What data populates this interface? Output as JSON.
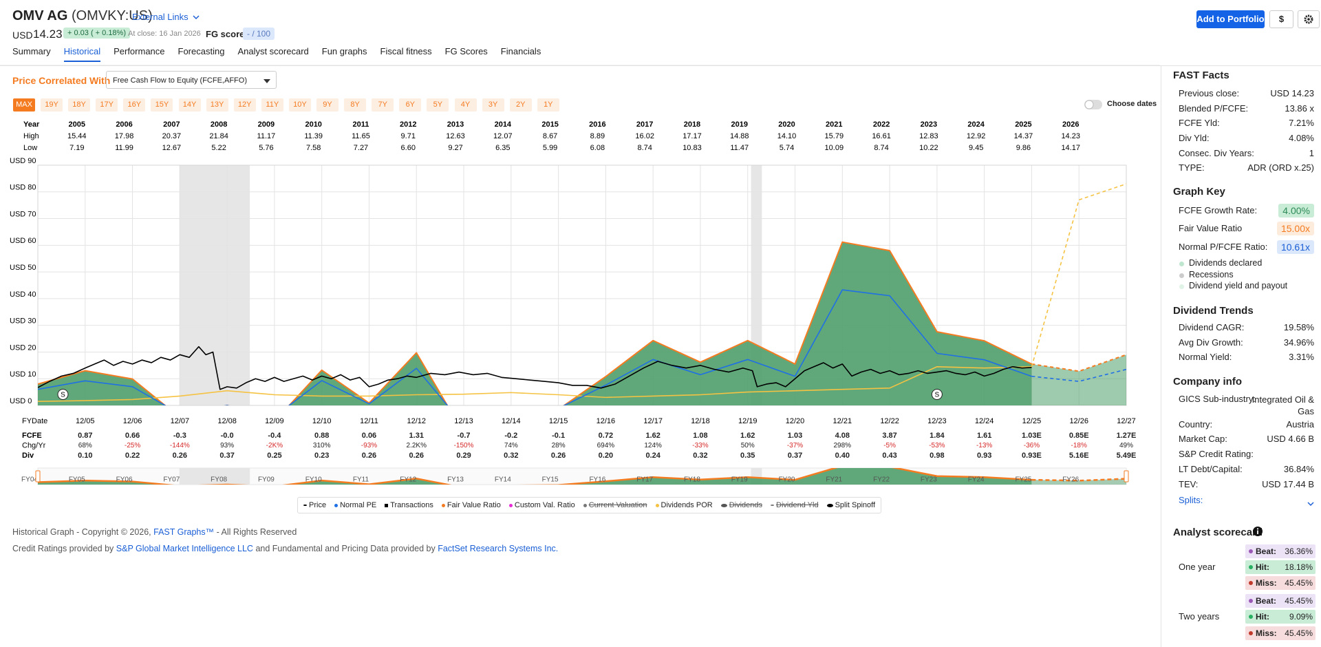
{
  "header": {
    "company": "OMV AG",
    "ticker": "(OMVKY:US)",
    "external_links": "External Links",
    "currency": "USD",
    "price": "14.23",
    "change": "+ 0.03 ( + 0.18%)",
    "at_close": "At close: 16 Jan 2026",
    "fg_score_label": "FG score",
    "fg_score": "- / 100",
    "add_to_portfolio": "Add to Portfolio",
    "currency_button": "$"
  },
  "tabs": [
    "Summary",
    "Historical",
    "Performance",
    "Forecasting",
    "Analyst scorecard",
    "Fun graphs",
    "Fiscal fitness",
    "FG Scores",
    "Financials"
  ],
  "active_tab": 1,
  "controls": {
    "price_correlated_label": "Price Correlated With",
    "correlated_with": "Free Cash Flow to Equity (FCFE,AFFO)",
    "ranges": [
      "MAX",
      "19Y",
      "18Y",
      "17Y",
      "16Y",
      "15Y",
      "14Y",
      "13Y",
      "12Y",
      "11Y",
      "10Y",
      "9Y",
      "8Y",
      "7Y",
      "6Y",
      "5Y",
      "4Y",
      "3Y",
      "2Y",
      "1Y"
    ],
    "active_range": 0,
    "choose_dates": "Choose dates"
  },
  "year_table": {
    "row_labels": [
      "Year",
      "High",
      "Low"
    ],
    "years": [
      "2005",
      "2006",
      "2007",
      "2008",
      "2009",
      "2010",
      "2011",
      "2012",
      "2013",
      "2014",
      "2015",
      "2016",
      "2017",
      "2018",
      "2019",
      "2020",
      "2021",
      "2022",
      "2023",
      "2024",
      "2025",
      "2026"
    ],
    "high": [
      "15.44",
      "17.98",
      "20.37",
      "21.84",
      "11.17",
      "11.39",
      "11.65",
      "9.71",
      "12.63",
      "12.07",
      "8.67",
      "8.89",
      "16.02",
      "17.17",
      "14.88",
      "14.10",
      "15.79",
      "16.61",
      "12.83",
      "12.92",
      "14.37",
      "14.23"
    ],
    "low": [
      "7.19",
      "11.99",
      "12.67",
      "5.22",
      "5.76",
      "7.58",
      "7.27",
      "6.60",
      "9.27",
      "6.35",
      "5.99",
      "6.08",
      "8.74",
      "10.83",
      "11.47",
      "5.74",
      "10.09",
      "8.74",
      "10.22",
      "9.45",
      "9.86",
      "14.17"
    ]
  },
  "chart_data": {
    "type": "line",
    "xlim": [
      2004,
      2027
    ],
    "ylim": [
      0,
      90
    ],
    "xticks": [
      {
        "value": 2005,
        "label": "12/05"
      },
      {
        "value": 2006,
        "label": "12/06"
      },
      {
        "value": 2007,
        "label": "12/07"
      },
      {
        "value": 2008,
        "label": "12/08"
      },
      {
        "value": 2009,
        "label": "12/09"
      },
      {
        "value": 2010,
        "label": "12/10"
      },
      {
        "value": 2011,
        "label": "12/11"
      },
      {
        "value": 2012,
        "label": "12/12"
      },
      {
        "value": 2013,
        "label": "12/13"
      },
      {
        "value": 2014,
        "label": "12/14"
      },
      {
        "value": 2015,
        "label": "12/15"
      },
      {
        "value": 2016,
        "label": "12/16"
      },
      {
        "value": 2017,
        "label": "12/17"
      },
      {
        "value": 2018,
        "label": "12/18"
      },
      {
        "value": 2019,
        "label": "12/19"
      },
      {
        "value": 2020,
        "label": "12/20"
      },
      {
        "value": 2021,
        "label": "12/21"
      },
      {
        "value": 2022,
        "label": "12/22"
      },
      {
        "value": 2023,
        "label": "12/23"
      },
      {
        "value": 2024,
        "label": "12/24"
      },
      {
        "value": 2025,
        "label": "12/25"
      },
      {
        "value": 2026,
        "label": "12/26"
      },
      {
        "value": 2027,
        "label": "12/27"
      }
    ],
    "yticks": [
      {
        "value": 0,
        "label": "USD 0"
      },
      {
        "value": 10,
        "label": "USD 10"
      },
      {
        "value": 20,
        "label": "USD 20"
      },
      {
        "value": 30,
        "label": "USD 30"
      },
      {
        "value": 40,
        "label": "USD 40"
      },
      {
        "value": 50,
        "label": "USD 50"
      },
      {
        "value": 60,
        "label": "USD 60"
      },
      {
        "value": 70,
        "label": "USD 70"
      },
      {
        "value": 80,
        "label": "USD 80"
      },
      {
        "value": 90,
        "label": "USD 90"
      }
    ],
    "grid": true,
    "forecast_start": 2025,
    "recessions": [
      {
        "start": 2006.99,
        "end": 2008.48
      },
      {
        "start": 2019.07,
        "end": 2019.3
      }
    ],
    "splits": [
      {
        "x": 2004.53,
        "label": "S"
      },
      {
        "x": 2023.0,
        "label": "S"
      }
    ],
    "series": [
      {
        "name": "Fair Value Ratio",
        "color": "#f47b20",
        "fill": "#4f9e6b",
        "x": [
          2004,
          2005,
          2006,
          2007,
          2008,
          2009,
          2010,
          2011,
          2012,
          2013,
          2014,
          2015,
          2016,
          2017,
          2018,
          2019,
          2020,
          2021,
          2022,
          2023,
          2024,
          2025,
          2026,
          2027
        ],
        "values": [
          8,
          13,
          9.9,
          -4.5,
          0,
          -6,
          13.2,
          0.9,
          19.7,
          -10.5,
          -3,
          -1.5,
          10.8,
          24.3,
          16.2,
          24.3,
          15.5,
          61.2,
          58,
          27.6,
          24.2,
          15.5,
          12.8,
          19
        ]
      },
      {
        "name": "Dividends POR",
        "color": "#f5c242",
        "x": [
          2004,
          2005,
          2006,
          2007,
          2008,
          2009,
          2010,
          2011,
          2012,
          2013,
          2014,
          2015,
          2016,
          2017,
          2018,
          2019,
          2020,
          2021,
          2022,
          2023,
          2024,
          2025,
          2026,
          2027
        ],
        "values": [
          1.5,
          1.8,
          2.2,
          3.5,
          5.5,
          4,
          3.5,
          3.5,
          4,
          4.2,
          4.8,
          4,
          3,
          3.5,
          4,
          5,
          5.5,
          6,
          6.5,
          14.5,
          14,
          14.5,
          77,
          83
        ]
      },
      {
        "name": "Normal PE",
        "color": "#1f6fe5",
        "x": [
          2004,
          2005,
          2006,
          2007,
          2008,
          2009,
          2010,
          2011,
          2012,
          2013,
          2014,
          2015,
          2016,
          2017,
          2018,
          2019,
          2020,
          2021,
          2022,
          2023,
          2024,
          2025,
          2026,
          2027
        ],
        "values": [
          6,
          9.2,
          7,
          -3.2,
          0,
          -4.2,
          9.3,
          0.6,
          13.9,
          -7.4,
          -2.1,
          -1.1,
          7.6,
          17.2,
          11.5,
          17.2,
          10.9,
          43.3,
          41.1,
          19.5,
          17.1,
          10.9,
          9,
          13.5
        ]
      },
      {
        "name": "Price",
        "color": "#000000",
        "x": [
          2004,
          2004.25,
          2004.5,
          2004.75,
          2005,
          2005.2,
          2005.4,
          2005.6,
          2005.8,
          2006,
          2006.2,
          2006.4,
          2006.6,
          2006.8,
          2007,
          2007.2,
          2007.4,
          2007.55,
          2007.7,
          2007.85,
          2008,
          2008.2,
          2008.4,
          2008.6,
          2008.8,
          2009,
          2009.2,
          2009.4,
          2009.6,
          2009.8,
          2010,
          2010.2,
          2010.4,
          2010.6,
          2010.8,
          2011,
          2011.2,
          2011.4,
          2011.6,
          2011.8,
          2012,
          2012.3,
          2012.6,
          2012.9,
          2013.2,
          2013.5,
          2013.8,
          2014.1,
          2014.4,
          2014.7,
          2015,
          2015.3,
          2015.6,
          2015.9,
          2016.2,
          2016.5,
          2016.8,
          2017.1,
          2017.4,
          2017.7,
          2018,
          2018.3,
          2018.6,
          2018.9,
          2019.1,
          2019.2,
          2019.4,
          2019.6,
          2019.8,
          2020,
          2020.2,
          2020.4,
          2020.6,
          2020.8,
          2021,
          2021.2,
          2021.4,
          2021.6,
          2021.8,
          2022,
          2022.2,
          2022.4,
          2022.6,
          2022.8,
          2023,
          2023.2,
          2023.4,
          2023.6,
          2023.8,
          2024,
          2024.2,
          2024.4,
          2024.6,
          2024.8,
          2025
        ],
        "values": [
          6.7,
          9,
          11,
          12,
          14,
          15.5,
          17,
          15,
          16.5,
          15.5,
          17,
          16,
          18,
          17,
          19,
          18,
          22,
          19,
          20,
          6,
          7,
          6.5,
          8.5,
          10,
          9,
          10.5,
          9,
          10,
          11,
          9.5,
          11,
          10,
          11.5,
          9.5,
          10.5,
          7,
          8,
          9.5,
          10,
          11,
          10.5,
          12,
          11.5,
          12.5,
          11.5,
          12,
          10.5,
          10,
          9.5,
          9,
          8.5,
          7.5,
          7.5,
          6.5,
          8,
          11,
          14,
          16.5,
          15,
          14,
          15,
          13.5,
          12.5,
          14,
          13,
          7,
          8,
          8.5,
          7,
          10,
          13,
          14.5,
          16,
          14,
          15.5,
          11,
          12.5,
          13.5,
          12,
          13,
          11.5,
          12,
          13,
          12,
          12.5,
          13,
          12,
          11.5,
          12.5,
          11,
          12,
          13.5,
          14.5,
          14,
          14.23
        ]
      }
    ],
    "legend": [
      {
        "name": "Price",
        "color": "#000000"
      },
      {
        "name": "Normal PE",
        "color": "#1f6fe5"
      },
      {
        "name": "Transactions",
        "color": "#000000"
      },
      {
        "name": "Fair Value Ratio",
        "color": "#f47b20"
      },
      {
        "name": "Custom Val. Ratio",
        "color": "#e52ad6"
      },
      {
        "name": "Current Valuation",
        "color": "#777777",
        "hidden": true
      },
      {
        "name": "Dividends POR",
        "color": "#f5c242"
      },
      {
        "name": "Dividends",
        "color": "#555555",
        "hidden": true
      },
      {
        "name": "Dividend Yld",
        "color": "#777777",
        "hidden": true
      },
      {
        "name": "Split Spinoff",
        "color": "#000000"
      }
    ]
  },
  "fundamentals": {
    "date_label": "FYDate",
    "row_labels": [
      "FCFE",
      "Chg/Yr",
      "Div"
    ],
    "rows": [
      [
        "0.87",
        "0.66",
        "-0.3",
        "-0.0",
        "-0.4",
        "0.88",
        "0.06",
        "1.31",
        "-0.7",
        "-0.2",
        "-0.1",
        "0.72",
        "1.62",
        "1.08",
        "1.62",
        "1.03",
        "4.08",
        "3.87",
        "1.84",
        "1.61",
        "1.03E",
        "0.85E",
        "1.27E"
      ],
      [
        "68%",
        "-25%",
        "-144%",
        "93%",
        "-2K%",
        "310%",
        "-93%",
        "2.2K%",
        "-150%",
        "74%",
        "28%",
        "694%",
        "124%",
        "-33%",
        "50%",
        "-37%",
        "298%",
        "-5%",
        "-53%",
        "-13%",
        "-36%",
        "-18%",
        "49%"
      ],
      [
        "0.10",
        "0.22",
        "0.26",
        "0.37",
        "0.25",
        "0.23",
        "0.26",
        "0.26",
        "0.29",
        "0.32",
        "0.26",
        "0.20",
        "0.24",
        "0.32",
        "0.35",
        "0.37",
        "0.40",
        "0.43",
        "0.98",
        "0.93",
        "0.93E",
        "5.16E",
        "5.49E"
      ]
    ]
  },
  "navigator": {
    "labels": [
      "FY04",
      "FY05",
      "FY06",
      "FY07",
      "FY08",
      "FY09",
      "FY10",
      "FY11",
      "FY12",
      "FY13",
      "FY14",
      "FY15",
      "FY16",
      "FY17",
      "FY18",
      "FY19",
      "FY20",
      "FY21",
      "FY22",
      "FY23",
      "FY24",
      "FY25",
      "FY26"
    ]
  },
  "footer": {
    "line1": [
      "Historical Graph - Copyright © 2026, ",
      "FAST Graphs™",
      " - All Rights Reserved"
    ],
    "line2": [
      "Credit Ratings provided by ",
      "S&P Global Market Intelligence LLC",
      " and Fundamental and Pricing Data provided by ",
      "FactSet Research Systems Inc."
    ]
  },
  "sidebar": {
    "fast_facts": {
      "title": "FAST Facts",
      "rows": [
        [
          "Previous close:",
          "USD 14.23"
        ],
        [
          "Blended P/FCFE:",
          "13.86 x"
        ],
        [
          "FCFE Yld:",
          "7.21%"
        ],
        [
          "Div Yld:",
          "4.08%"
        ],
        [
          "Consec. Div Years:",
          "1"
        ],
        [
          "TYPE:",
          "ADR (ORD x.25)"
        ]
      ]
    },
    "graph_key": {
      "title": "Graph Key",
      "rows": [
        [
          "FCFE Growth Rate:",
          "4.00%"
        ],
        [
          "Fair Value Ratio",
          "15.00x"
        ],
        [
          "Normal P/FCFE Ratio:",
          "10.61x"
        ]
      ],
      "items": [
        "Dividends declared",
        "Recessions",
        "Dividend yield and payout"
      ]
    },
    "dividend_trends": {
      "title": "Dividend Trends",
      "rows": [
        [
          "Dividend CAGR:",
          "19.58%"
        ],
        [
          "Avg Div Growth:",
          "34.96%"
        ],
        [
          "Normal Yield:",
          "3.31%"
        ]
      ]
    },
    "company_info": {
      "title": "Company info",
      "rows": [
        [
          "GICS Sub-industry:",
          "Integrated Oil & Gas"
        ],
        [
          "Country:",
          "Austria"
        ],
        [
          "Market Cap:",
          "USD 4.66 B"
        ],
        [
          "S&P Credit Rating:"
        ],
        [
          "LT Debt/Capital:",
          "36.84%"
        ],
        [
          "TEV:",
          "USD 17.44 B"
        ]
      ],
      "splits": "Splits:"
    },
    "analyst_scorecard": {
      "title": "Analyst scorecard",
      "groups": [
        {
          "label": "One year",
          "rows": [
            [
              "Beat:",
              "36.36%"
            ],
            [
              "Hit:",
              "18.18%"
            ],
            [
              "Miss:",
              "45.45%"
            ]
          ]
        },
        {
          "label": "Two years",
          "rows": [
            [
              "Beat:",
              "45.45%"
            ],
            [
              "Hit:",
              "9.09%"
            ],
            [
              "Miss:",
              "45.45%"
            ]
          ]
        }
      ]
    }
  }
}
